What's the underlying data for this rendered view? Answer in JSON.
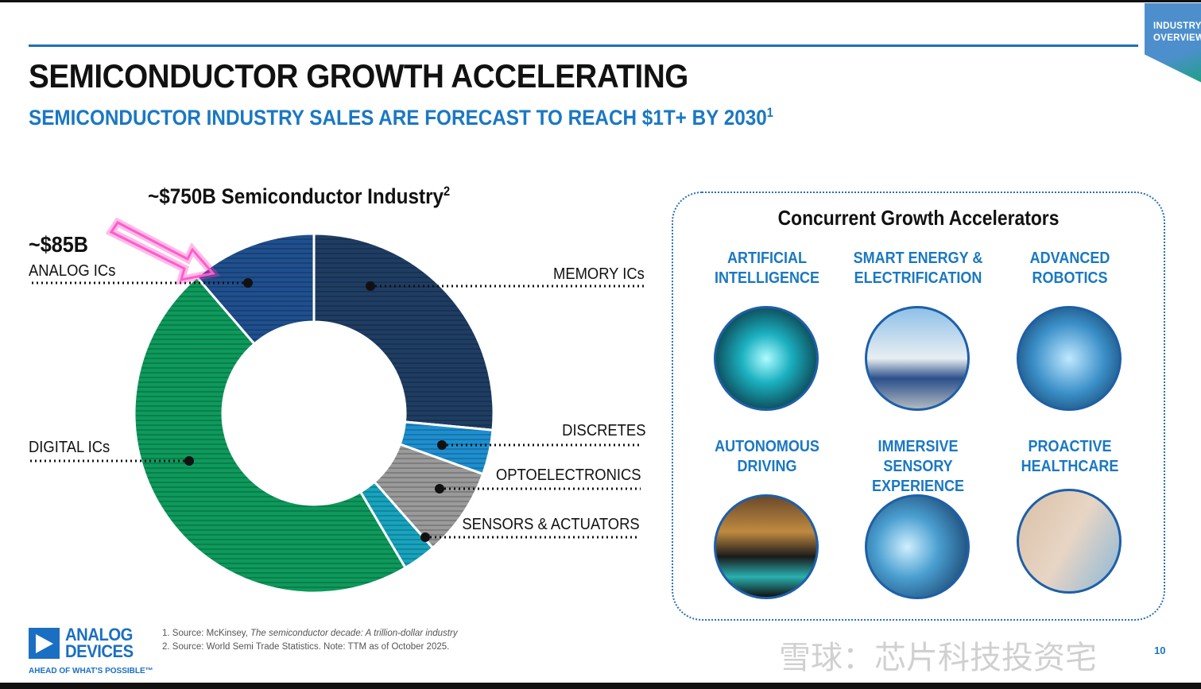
{
  "tag": {
    "line1": "INDUSTRY",
    "line2": "OVERVIEW"
  },
  "title": "SEMICONDUCTOR GROWTH ACCELERATING",
  "subtitle": "SEMICONDUCTOR INDUSTRY SALES ARE FORECAST TO REACH $1T+ BY 2030",
  "subtitle_sup": "1",
  "chart_data": {
    "type": "pie",
    "title": "~$750B Semiconductor Industry",
    "title_sup": "2",
    "unit": "share of industry (%), estimated",
    "callout": {
      "value": "~$85B",
      "label": "ANALOG ICs"
    },
    "categories": [
      "MEMORY ICs",
      "DISCRETES",
      "OPTOELECTRONICS",
      "SENSORS & ACTUATORS",
      "DIGITAL ICs",
      "ANALOG ICs"
    ],
    "values": [
      26.5,
      4,
      8,
      3,
      47.2,
      11.3
    ],
    "colors": [
      "#1f3d63",
      "#1d8fd0",
      "#9a9a9a",
      "#17a3bd",
      "#0d9a5c",
      "#1f4f8e"
    ],
    "donut": true
  },
  "accelerators": {
    "title": "Concurrent Growth Accelerators",
    "items": [
      {
        "l1": "ARTIFICIAL",
        "l2": "INTELLIGENCE"
      },
      {
        "l1": "SMART ENERGY &",
        "l2": "ELECTRIFICATION"
      },
      {
        "l1": "ADVANCED",
        "l2": "ROBOTICS"
      },
      {
        "l1": "AUTONOMOUS",
        "l2": "DRIVING"
      },
      {
        "l1": "IMMERSIVE SENSORY",
        "l2": "EXPERIENCE"
      },
      {
        "l1": "PROACTIVE",
        "l2": "HEALTHCARE"
      }
    ]
  },
  "logo": {
    "line1": "ANALOG",
    "line2": "DEVICES",
    "tagline": "AHEAD OF WHAT'S POSSIBLE™"
  },
  "footnotes": {
    "f1_prefix": "1. Source: McKinsey, ",
    "f1_italic": "The semiconductor decade: A trillion-dollar industry",
    "f2": "2. Source: World Semi Trade Statistics. Note: TTM as of October 2025."
  },
  "watermark": "雪球：芯片科技投资宅",
  "page_number": "10"
}
